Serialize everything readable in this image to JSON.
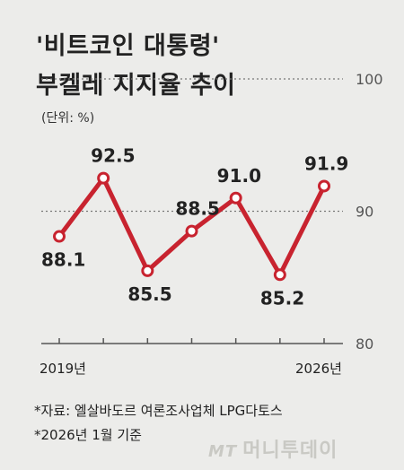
{
  "header": {
    "title_line1": "'비트코인 대통령'",
    "title_line2": "부켈레 지지율 추이",
    "unit": "(단위: %)"
  },
  "footnotes": {
    "source": "*자료: 엘살바도르 여론조사업체 LPG다토스",
    "basis": "*2026년 1월 기준"
  },
  "brand": {
    "mt": "MT",
    "name": "머니투데이"
  },
  "colors": {
    "line": "#c8232f",
    "text": "#222222",
    "axis": "#555555"
  },
  "chart_data": {
    "type": "line",
    "points": [
      {
        "x": "2019년",
        "y": 88.1
      },
      {
        "y": 92.5
      },
      {
        "y": 85.5
      },
      {
        "y": 88.5
      },
      {
        "y": 91.0
      },
      {
        "y": 85.2
      },
      {
        "x": "2026년",
        "y": 91.9
      }
    ],
    "x_tick_labels": [
      "2019년",
      "2026년"
    ],
    "y_ticks": [
      "100",
      "90",
      "80"
    ],
    "ylim": [
      80,
      100
    ],
    "data_labels": [
      "88.1",
      "92.5",
      "85.5",
      "88.5",
      "91.0",
      "85.2",
      "91.9"
    ],
    "gridlines": "dotted at 100 and 90",
    "legend": "none"
  }
}
